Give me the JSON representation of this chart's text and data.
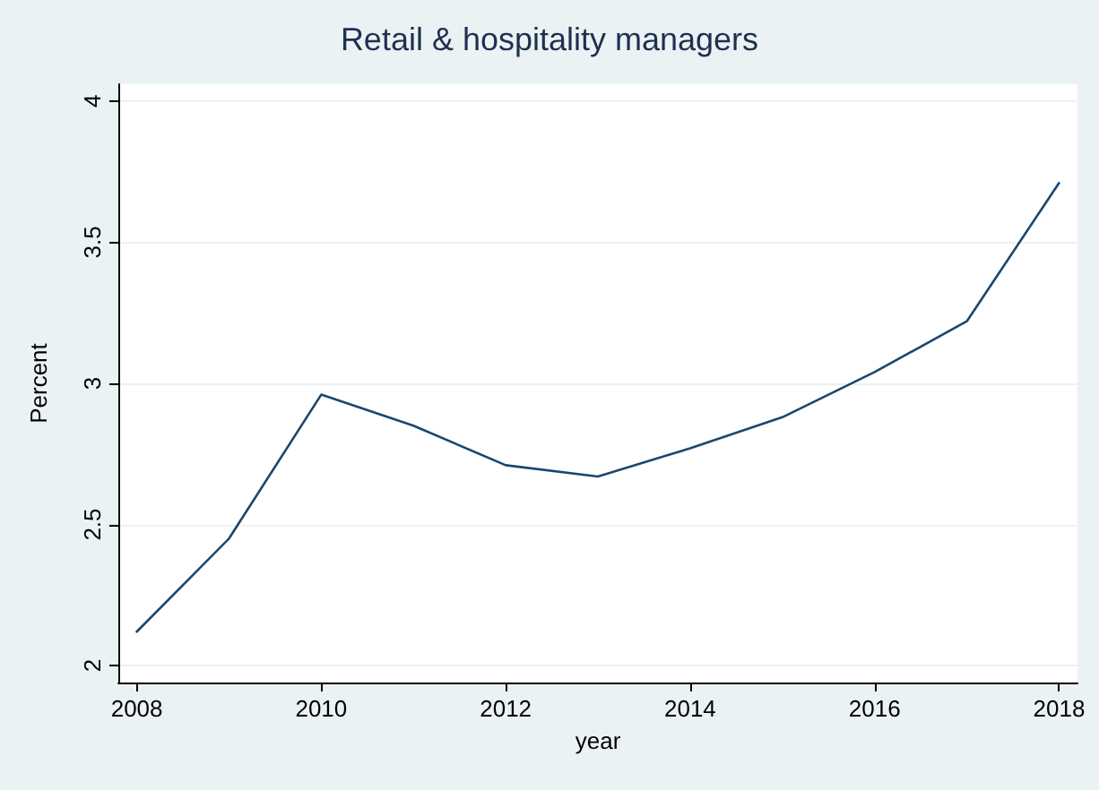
{
  "chart_data": {
    "type": "line",
    "title": "Retail & hospitality managers",
    "xlabel": "year",
    "ylabel": "Percent",
    "x": [
      2008,
      2009,
      2010,
      2011,
      2012,
      2013,
      2014,
      2015,
      2016,
      2017,
      2018
    ],
    "series": [
      {
        "color": "#1a476f",
        "values": [
          2.12,
          2.45,
          2.96,
          2.85,
          2.71,
          2.67,
          2.77,
          2.88,
          3.04,
          3.22,
          3.71
        ]
      }
    ],
    "xlim": [
      2007.8,
      2018.2
    ],
    "xticks": [
      2008,
      2010,
      2012,
      2014,
      2016,
      2018
    ],
    "ylim": [
      1.94,
      4.06
    ],
    "yticks": [
      2,
      2.5,
      3,
      3.5,
      4
    ],
    "grid": "y",
    "marker": "none",
    "line_style": "solid"
  }
}
